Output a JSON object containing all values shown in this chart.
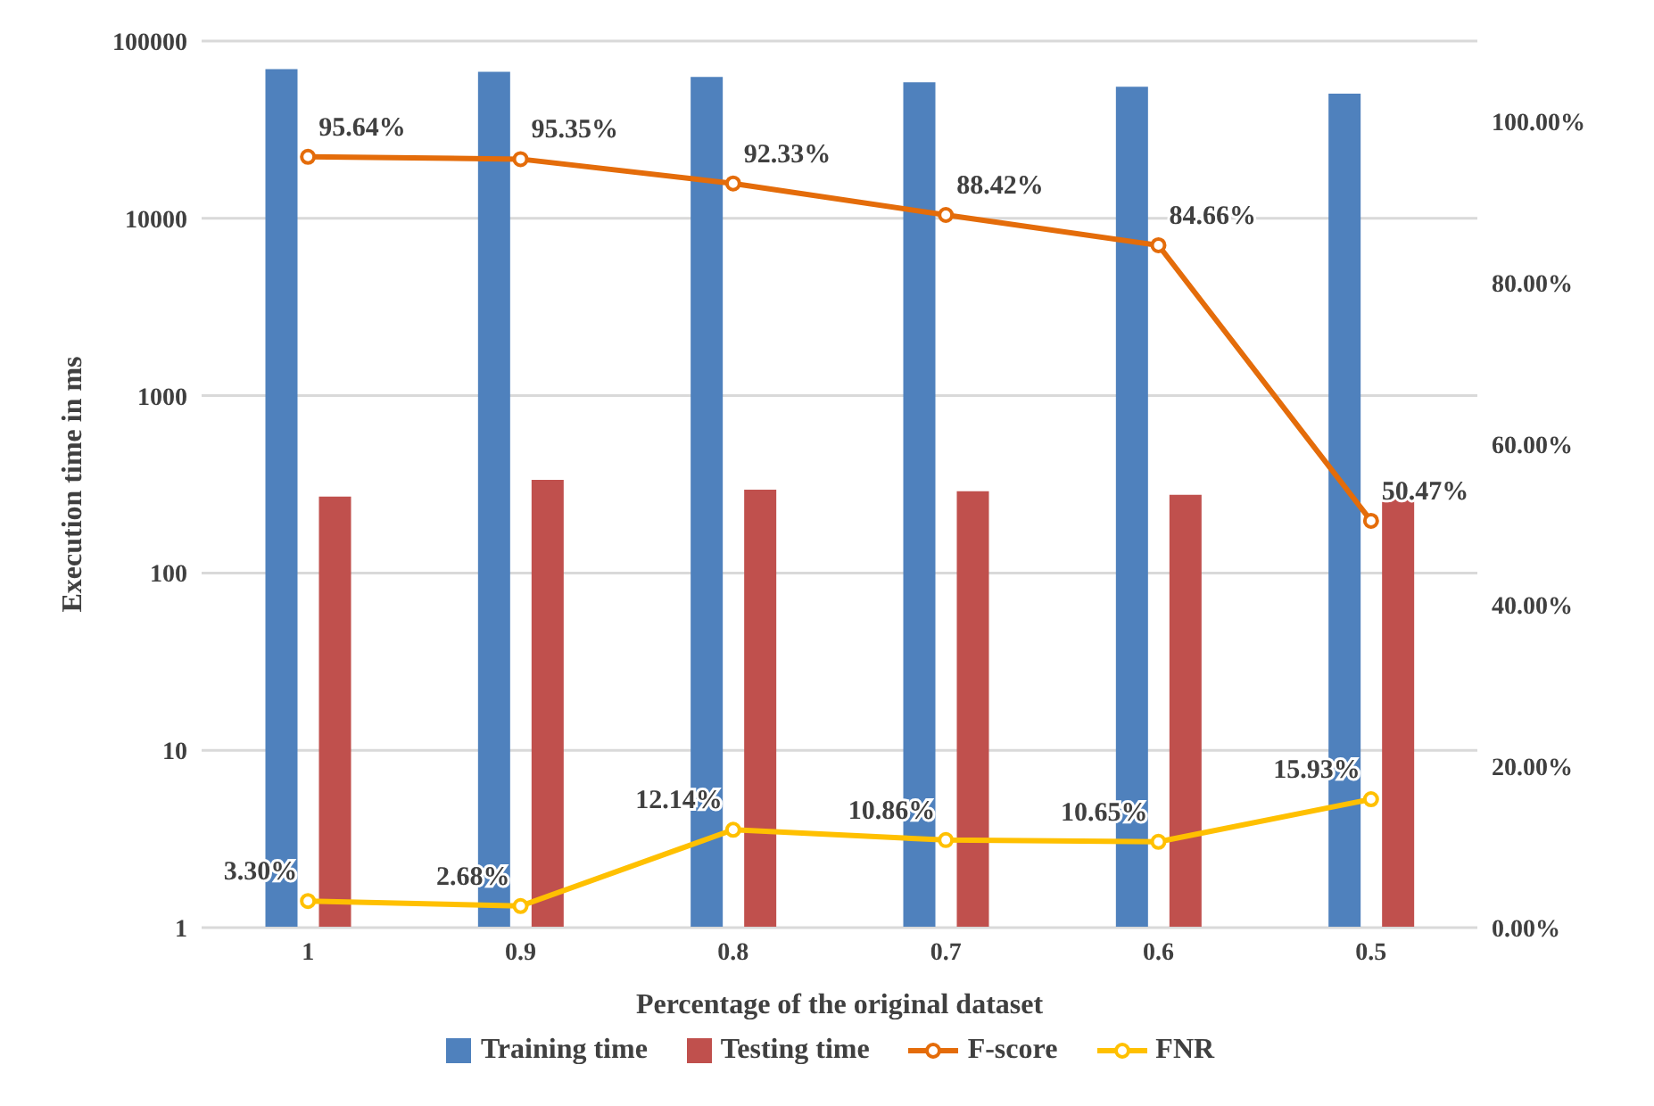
{
  "chart_data": {
    "type": "bar",
    "xlabel": "Percentage of the original dataset",
    "ylabel": "Execution time in ms",
    "categories": [
      "1",
      "0.9",
      "0.8",
      "0.7",
      "0.6",
      "0.5"
    ],
    "log": "y",
    "ylim": [
      1,
      100000
    ],
    "yticks": [
      1,
      10,
      100,
      1000,
      10000,
      100000
    ],
    "y2lim": [
      0,
      110
    ],
    "y2ticks": [
      {
        "value": 0,
        "label": "0.00%"
      },
      {
        "value": 20,
        "label": "20.00%"
      },
      {
        "value": 40,
        "label": "40.00%"
      },
      {
        "value": 60,
        "label": "60.00%"
      },
      {
        "value": 80,
        "label": "80.00%"
      },
      {
        "value": 100,
        "label": "100.00%"
      }
    ],
    "grid": "y",
    "legend": "bottom",
    "marker": "circle",
    "series": [
      {
        "name": "Training time",
        "color": "#4f81bd",
        "values": [
          69500,
          67100,
          62700,
          58500,
          55300,
          50500
        ]
      },
      {
        "name": "Testing time",
        "color": "#c0504d",
        "values": [
          270,
          335,
          295,
          289,
          276,
          270
        ]
      },
      {
        "name": "F-score",
        "type": "line",
        "axis": "y2",
        "color": "#e46c0a",
        "values": [
          95.64,
          95.35,
          92.33,
          88.42,
          84.66,
          50.47
        ],
        "value_labels": [
          "95.64%",
          "95.35%",
          "92.33%",
          "88.42%",
          "84.66%",
          "50.47%"
        ]
      },
      {
        "name": "FNR",
        "type": "line",
        "axis": "y2",
        "color": "#ffc000",
        "values": [
          3.3,
          2.68,
          12.14,
          10.86,
          10.65,
          15.93
        ],
        "value_labels": [
          "3.30%",
          "2.68%",
          "12.14%",
          "10.86%",
          "10.65%",
          "15.93%"
        ]
      }
    ]
  }
}
